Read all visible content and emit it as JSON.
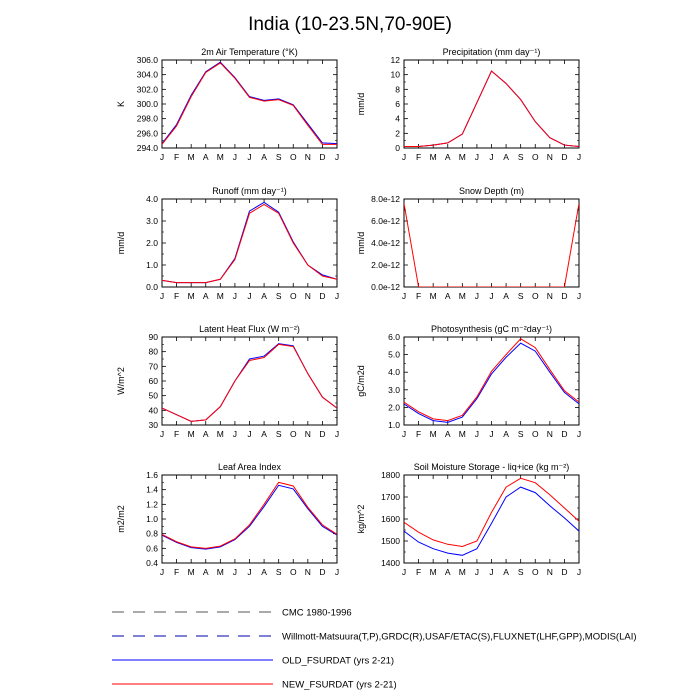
{
  "figure": {
    "title": "India (10-23.5N,70-90E)",
    "months": [
      "J",
      "F",
      "M",
      "A",
      "M",
      "J",
      "J",
      "A",
      "S",
      "O",
      "N",
      "D",
      "J"
    ],
    "colors": {
      "old": "#0000ff",
      "new": "#ff0000",
      "obs": "#0000aa",
      "cmc": "#555555"
    }
  },
  "legend": [
    {
      "label": "CMC 1980-1996",
      "style": "dash",
      "color": "#555555"
    },
    {
      "label": "Willmott-Matsuura(T,P),GRDC(R),USAF/ETAC(S),FLUXNET(LHF,GPP),MODIS(LAI)",
      "style": "dash",
      "color": "#0000aa"
    },
    {
      "label": "OLD_FSURDAT (yrs 2-21)",
      "style": "solid",
      "color": "#0000ff"
    },
    {
      "label": "NEW_FSURDAT (yrs 2-21)",
      "style": "solid",
      "color": "#ff0000"
    }
  ],
  "chart_data": [
    {
      "type": "line",
      "title": "2m Air Temperature (°K)",
      "ylabel": "K",
      "x": [
        "J",
        "F",
        "M",
        "A",
        "M",
        "J",
        "J",
        "A",
        "S",
        "O",
        "N",
        "D",
        "J"
      ],
      "ylim": [
        294,
        306
      ],
      "yticks": [
        "294.0",
        "296.0",
        "298.0",
        "300.0",
        "302.0",
        "304.0",
        "306.0"
      ],
      "ytick_values": [
        294,
        296,
        298,
        300,
        302,
        304,
        306
      ],
      "series": [
        {
          "name": "OLD_FSURDAT (yrs 2-21)",
          "values": [
            294.6,
            297.2,
            301.2,
            304.4,
            305.7,
            303.6,
            301.0,
            300.5,
            300.7,
            299.9,
            297.3,
            294.7,
            294.6
          ]
        },
        {
          "name": "NEW_FSURDAT (yrs 2-21)",
          "values": [
            294.5,
            297.0,
            301.0,
            304.3,
            305.6,
            303.5,
            300.9,
            300.4,
            300.6,
            299.8,
            297.1,
            294.5,
            294.5
          ]
        }
      ]
    },
    {
      "type": "line",
      "title": "Precipitation (mm day⁻¹)",
      "ylabel": "mm/d",
      "x": [
        "J",
        "F",
        "M",
        "A",
        "M",
        "J",
        "J",
        "A",
        "S",
        "O",
        "N",
        "D",
        "J"
      ],
      "ylim": [
        0,
        12
      ],
      "yticks": [
        "0",
        "2",
        "4",
        "6",
        "8",
        "10",
        "12"
      ],
      "ytick_values": [
        0,
        2,
        4,
        6,
        8,
        10,
        12
      ],
      "series": [
        {
          "name": "OLD_FSURDAT (yrs 2-21)",
          "values": [
            0.2,
            0.2,
            0.4,
            0.7,
            1.9,
            6.2,
            10.5,
            8.8,
            6.6,
            3.6,
            1.4,
            0.4,
            0.2
          ]
        },
        {
          "name": "NEW_FSURDAT (yrs 2-21)",
          "values": [
            0.2,
            0.2,
            0.4,
            0.7,
            1.9,
            6.2,
            10.5,
            8.8,
            6.6,
            3.6,
            1.4,
            0.4,
            0.2
          ]
        }
      ]
    },
    {
      "type": "line",
      "title": "Runoff (mm day⁻¹)",
      "ylabel": "mm/d",
      "x": [
        "J",
        "F",
        "M",
        "A",
        "M",
        "J",
        "J",
        "A",
        "S",
        "O",
        "N",
        "D",
        "J"
      ],
      "ylim": [
        0,
        4
      ],
      "yticks": [
        "0.0",
        "1.0",
        "2.0",
        "3.0",
        "4.0"
      ],
      "ytick_values": [
        0,
        1,
        2,
        3,
        4
      ],
      "series": [
        {
          "name": "OLD_FSURDAT (yrs 2-21)",
          "values": [
            0.3,
            0.2,
            0.2,
            0.2,
            0.35,
            1.3,
            3.45,
            3.85,
            3.4,
            2.05,
            1.0,
            0.55,
            0.35
          ]
        },
        {
          "name": "NEW_FSURDAT (yrs 2-21)",
          "values": [
            0.3,
            0.2,
            0.2,
            0.2,
            0.35,
            1.25,
            3.35,
            3.75,
            3.35,
            2.0,
            1.0,
            0.5,
            0.35
          ]
        }
      ]
    },
    {
      "type": "line",
      "title": "Snow Depth (m)",
      "ylabel": "mm/d",
      "x": [
        "J",
        "F",
        "M",
        "A",
        "M",
        "J",
        "J",
        "A",
        "S",
        "O",
        "N",
        "D",
        "J"
      ],
      "ylim": [
        0,
        8e-12
      ],
      "yticks": [
        "0.0e-12",
        "2.0e-12",
        "4.0e-12",
        "6.0e-12",
        "8.0e-12"
      ],
      "ytick_values": [
        0,
        2e-12,
        4e-12,
        6e-12,
        8e-12
      ],
      "series": [
        {
          "name": "NEW_FSURDAT (yrs 2-21)",
          "values": [
            7.6e-12,
            0,
            0,
            0,
            0,
            0,
            0,
            0,
            0,
            0,
            0,
            0,
            7.6e-12
          ]
        }
      ]
    },
    {
      "type": "line",
      "title": "Latent Heat Flux (W m⁻²)",
      "ylabel": "W/m^2",
      "x": [
        "J",
        "F",
        "M",
        "A",
        "M",
        "J",
        "J",
        "A",
        "S",
        "O",
        "N",
        "D",
        "J"
      ],
      "ylim": [
        30,
        90
      ],
      "yticks": [
        "30",
        "40",
        "50",
        "60",
        "70",
        "80",
        "90"
      ],
      "ytick_values": [
        30,
        40,
        50,
        60,
        70,
        80,
        90
      ],
      "series": [
        {
          "name": "OLD_FSURDAT (yrs 2-21)",
          "values": [
            41.5,
            37,
            32.5,
            33.5,
            42.5,
            60,
            75,
            77,
            85.5,
            84,
            65,
            49,
            41.5
          ]
        },
        {
          "name": "NEW_FSURDAT (yrs 2-21)",
          "values": [
            41.5,
            37,
            32.5,
            33.5,
            42.5,
            60,
            74,
            76,
            85,
            83.5,
            65,
            49,
            41.5
          ]
        }
      ]
    },
    {
      "type": "line",
      "title": "Photosynthesis (gC m⁻²day⁻¹)",
      "ylabel": "gC/m2d",
      "x": [
        "J",
        "F",
        "M",
        "A",
        "M",
        "J",
        "J",
        "A",
        "S",
        "O",
        "N",
        "D",
        "J"
      ],
      "ylim": [
        1,
        6
      ],
      "yticks": [
        "1.0",
        "2.0",
        "3.0",
        "4.0",
        "5.0",
        "6.0"
      ],
      "ytick_values": [
        1,
        2,
        3,
        4,
        5,
        6
      ],
      "series": [
        {
          "name": "OLD_FSURDAT (yrs 2-21)",
          "values": [
            2.2,
            1.65,
            1.25,
            1.15,
            1.45,
            2.5,
            3.9,
            4.85,
            5.65,
            5.2,
            4.0,
            2.85,
            2.2
          ]
        },
        {
          "name": "NEW_FSURDAT (yrs 2-21)",
          "values": [
            2.3,
            1.75,
            1.35,
            1.25,
            1.55,
            2.6,
            4.05,
            5.0,
            5.9,
            5.4,
            4.15,
            2.95,
            2.3
          ]
        }
      ]
    },
    {
      "type": "line",
      "title": "Leaf Area Index",
      "ylabel": "m2/m2",
      "x": [
        "J",
        "F",
        "M",
        "A",
        "M",
        "J",
        "J",
        "A",
        "S",
        "O",
        "N",
        "D",
        "J"
      ],
      "ylim": [
        0.4,
        1.6
      ],
      "yticks": [
        "0.4",
        "0.6",
        "0.8",
        "1.0",
        "1.2",
        "1.4",
        "1.6"
      ],
      "ytick_values": [
        0.4,
        0.6,
        0.8,
        1.0,
        1.2,
        1.4,
        1.6
      ],
      "series": [
        {
          "name": "OLD_FSURDAT (yrs 2-21)",
          "values": [
            0.78,
            0.68,
            0.61,
            0.59,
            0.62,
            0.72,
            0.9,
            1.17,
            1.46,
            1.41,
            1.14,
            0.9,
            0.78
          ]
        },
        {
          "name": "NEW_FSURDAT (yrs 2-21)",
          "values": [
            0.79,
            0.69,
            0.62,
            0.6,
            0.63,
            0.73,
            0.92,
            1.2,
            1.5,
            1.45,
            1.16,
            0.92,
            0.79
          ]
        }
      ]
    },
    {
      "type": "line",
      "title": "Soil Moisture Storage - liq+ice (kg m⁻²)",
      "ylabel": "kg/m^2",
      "x": [
        "J",
        "F",
        "M",
        "A",
        "M",
        "J",
        "J",
        "A",
        "S",
        "O",
        "N",
        "D",
        "J"
      ],
      "ylim": [
        1400,
        1800
      ],
      "yticks": [
        "1400",
        "1500",
        "1600",
        "1700",
        "1800"
      ],
      "ytick_values": [
        1400,
        1500,
        1600,
        1700,
        1800
      ],
      "series": [
        {
          "name": "OLD_FSURDAT (yrs 2-21)",
          "values": [
            1545,
            1495,
            1465,
            1445,
            1435,
            1465,
            1580,
            1700,
            1745,
            1720,
            1660,
            1605,
            1545
          ]
        },
        {
          "name": "NEW_FSURDAT (yrs 2-21)",
          "values": [
            1585,
            1540,
            1505,
            1485,
            1475,
            1500,
            1630,
            1745,
            1785,
            1765,
            1710,
            1650,
            1590
          ]
        }
      ]
    }
  ]
}
